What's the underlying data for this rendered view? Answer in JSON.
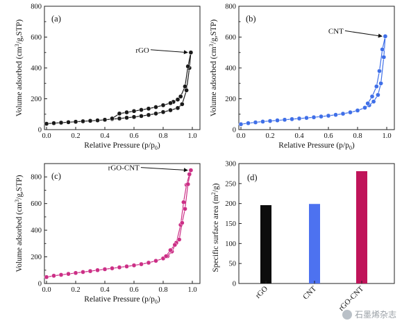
{
  "watermark": "石墨烯杂志",
  "chart_data": [
    {
      "panel": "(a)",
      "type": "line",
      "xlabel": "Relative Pressure (p/p0)",
      "ylabel": "Volume adsorbed (cm3/g,STP)",
      "xlim": [
        0.0,
        1.0
      ],
      "ylim": [
        0,
        800
      ],
      "xticks": [
        "0.0",
        "0.2",
        "0.4",
        "0.6",
        "0.8",
        "1.0"
      ],
      "yticks": [
        "0",
        "200",
        "400",
        "600",
        "800"
      ],
      "color": "#1a1a1a",
      "annotation": {
        "text": "rGO",
        "x": 0.99,
        "y": 500
      },
      "series": [
        {
          "x": [
            0.0,
            0.05,
            0.1,
            0.15,
            0.2,
            0.25,
            0.3,
            0.35,
            0.4,
            0.45,
            0.5,
            0.55,
            0.6,
            0.65,
            0.7,
            0.75,
            0.8,
            0.85,
            0.9,
            0.93,
            0.96,
            0.98,
            0.99
          ],
          "y": [
            38,
            42,
            45,
            48,
            51,
            54,
            57,
            60,
            64,
            68,
            72,
            77,
            82,
            88,
            95,
            104,
            114,
            126,
            140,
            165,
            255,
            400,
            500
          ]
        },
        {
          "x": [
            0.99,
            0.97,
            0.95,
            0.92,
            0.9,
            0.87,
            0.85,
            0.8,
            0.75,
            0.7,
            0.65,
            0.6,
            0.55,
            0.5,
            0.45
          ],
          "y": [
            500,
            410,
            280,
            215,
            195,
            180,
            172,
            158,
            146,
            136,
            128,
            120,
            112,
            104,
            72
          ]
        }
      ]
    },
    {
      "panel": "(b)",
      "type": "line",
      "xlabel": "Relative Pressure (p/p0)",
      "ylabel": "Volume adsorbed (cm3/g,STP)",
      "xlim": [
        0.0,
        1.0
      ],
      "ylim": [
        0,
        800
      ],
      "xticks": [
        "0.0",
        "0.2",
        "0.4",
        "0.6",
        "0.8",
        "1.0"
      ],
      "yticks": [
        "0",
        "200",
        "400",
        "600",
        "800"
      ],
      "color": "#3f6fe8",
      "annotation": {
        "text": "CNT",
        "x": 0.99,
        "y": 605
      },
      "series": [
        {
          "x": [
            0.0,
            0.05,
            0.1,
            0.15,
            0.2,
            0.25,
            0.3,
            0.35,
            0.4,
            0.45,
            0.5,
            0.55,
            0.6,
            0.65,
            0.7,
            0.75,
            0.8,
            0.85,
            0.88,
            0.91,
            0.94,
            0.96,
            0.98,
            0.99
          ],
          "y": [
            35,
            42,
            47,
            52,
            56,
            60,
            64,
            68,
            72,
            76,
            80,
            85,
            90,
            96,
            103,
            112,
            124,
            142,
            158,
            182,
            225,
            300,
            470,
            605
          ]
        },
        {
          "x": [
            0.99,
            0.97,
            0.95,
            0.93,
            0.9,
            0.87
          ],
          "y": [
            605,
            520,
            380,
            280,
            215,
            170
          ]
        }
      ]
    },
    {
      "panel": "(c)",
      "type": "line",
      "xlabel": "Relative Pressure (p/p0)",
      "ylabel": "Volume adsorbed (cm3/g,STP)",
      "xlim": [
        0.0,
        1.0
      ],
      "ylim": [
        0,
        900
      ],
      "xticks": [
        "0.0",
        "0.2",
        "0.4",
        "0.6",
        "0.8",
        "1.0"
      ],
      "yticks": [
        "0",
        "200",
        "400",
        "600",
        "800"
      ],
      "color": "#cc2f86",
      "annotation": {
        "text": "rGO-CNT",
        "x": 0.99,
        "y": 850
      },
      "series": [
        {
          "x": [
            0.0,
            0.05,
            0.1,
            0.15,
            0.2,
            0.25,
            0.3,
            0.35,
            0.4,
            0.45,
            0.5,
            0.55,
            0.6,
            0.65,
            0.7,
            0.75,
            0.8,
            0.83,
            0.86,
            0.89,
            0.92,
            0.94,
            0.96,
            0.98,
            0.99
          ],
          "y": [
            48,
            58,
            65,
            72,
            79,
            86,
            93,
            100,
            107,
            114,
            121,
            128,
            136,
            145,
            156,
            170,
            188,
            205,
            240,
            305,
            440,
            610,
            740,
            820,
            850
          ]
        },
        {
          "x": [
            0.99,
            0.97,
            0.95,
            0.93,
            0.91,
            0.88,
            0.85,
            0.82
          ],
          "y": [
            850,
            745,
            560,
            455,
            330,
            290,
            250,
            205
          ]
        }
      ]
    },
    {
      "panel": "(d)",
      "type": "bar",
      "ylabel": "Specific surface area (m2/g)",
      "categories": [
        "rGO",
        "CNT",
        "rGO-CNT"
      ],
      "values": [
        196,
        199,
        281
      ],
      "colors": [
        "#0d0d0d",
        "#4d72f0",
        "#c0145a"
      ],
      "ylim": [
        0,
        300
      ],
      "yticks": [
        "0",
        "50",
        "100",
        "150",
        "200",
        "250",
        "300"
      ]
    }
  ]
}
